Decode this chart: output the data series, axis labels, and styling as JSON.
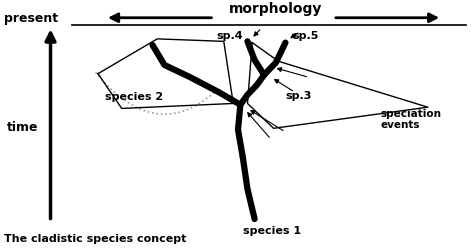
{
  "bg_color": "#ffffff",
  "title": "The cladistic species concept",
  "morphology_label": "morphology",
  "present_label": "present",
  "time_label": "time",
  "sp4_label": "sp.4",
  "sp5_label": "sp.5",
  "sp3_label": "sp.3",
  "species1_label": "species 1",
  "species2_label": "species 2",
  "speciation_label": "speciation\nevents",
  "line_color": "#000000",
  "thick_lw": 4.5,
  "thin_lw": 1.0,
  "dot_color": "#888888"
}
